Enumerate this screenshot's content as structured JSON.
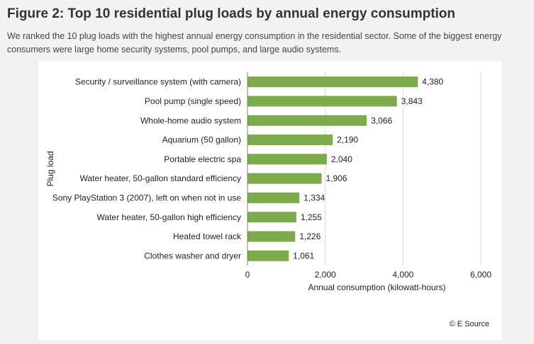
{
  "figure": {
    "title": "Figure 2: Top 10 residential plug loads by annual energy consumption",
    "subtitle": "We ranked the 10 plug loads with the highest annual energy consumption in the residential sector. Some of the biggest energy consumers were large home security systems, pool pumps, and large audio systems.",
    "credit": "© E Source"
  },
  "colors": {
    "bar": "#7daa4a",
    "gridline": "#d9d9d9",
    "axis": "#7f7f7f",
    "text": "#222222"
  },
  "chart_data": {
    "type": "bar",
    "orientation": "horizontal",
    "categories": [
      "Security / surveillance system (with camera)",
      "Pool pump (single speed)",
      "Whole-home audio system",
      "Aquarium (50 gallon)",
      "Portable electric spa",
      "Water heater, 50-gallon standard efficiency",
      "Sony PlayStation 3 (2007), left on when not in use",
      "Water heater, 50-gallon high efficiency",
      "Heated towel rack",
      "Clothes washer and dryer"
    ],
    "values": [
      4380,
      3843,
      3066,
      2190,
      2040,
      1906,
      1334,
      1255,
      1226,
      1061
    ],
    "value_labels": [
      "4,380",
      "3,843",
      "3,066",
      "2,190",
      "2,040",
      "1,906",
      "1,334",
      "1,255",
      "1,226",
      "1,061"
    ],
    "xlabel": "Annual consumption (kilowatt-hours)",
    "ylabel": "Plug load",
    "xlim": [
      0,
      6000
    ],
    "xticks": [
      0,
      2000,
      4000,
      6000
    ],
    "xtick_labels": [
      "0",
      "2,000",
      "4,000",
      "6,000"
    ],
    "grid": "vertical",
    "legend": "none"
  }
}
